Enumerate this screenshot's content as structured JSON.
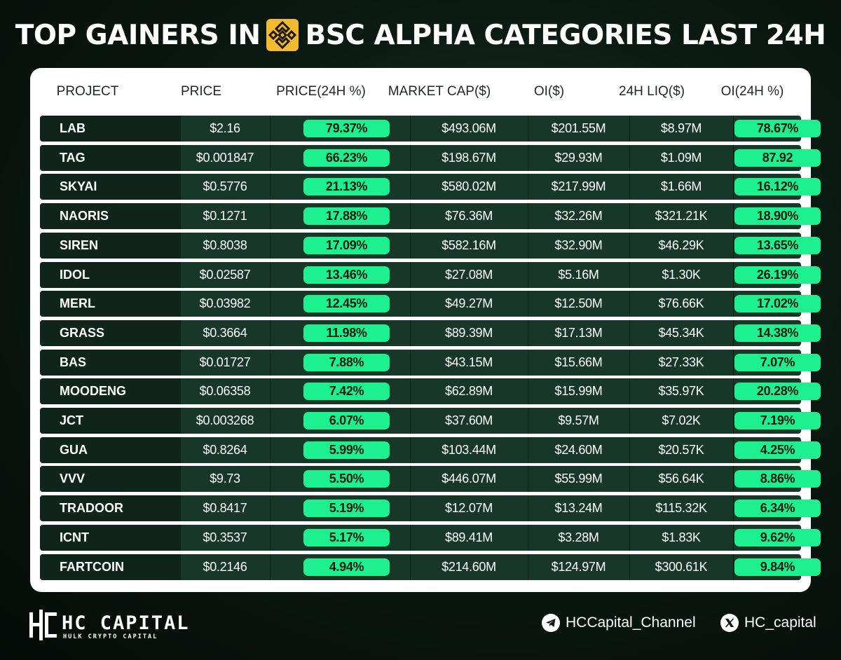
{
  "title_left": "TOP GAINERS IN",
  "title_right": "BSC ALPHA CATEGORIES LAST 24H",
  "logo_icon": "bnb-logo-icon",
  "colors": {
    "accent": "#1cf08f",
    "row_bg": "#173728",
    "project_bg": "#0f2519",
    "logo": "#f3ba2f"
  },
  "table": {
    "headers": [
      "PROJECT",
      "PRICE",
      "PRICE(24H %)",
      "MARKET CAP($)",
      "OI($)",
      "24H LIQ($)",
      "OI(24H %)"
    ],
    "rows": [
      [
        "LAB",
        "$2.16",
        "79.37%",
        "$493.06M",
        "$201.55M",
        "$8.97M",
        "78.67%"
      ],
      [
        "TAG",
        "$0.001847",
        "66.23%",
        "$198.67M",
        "$29.93M",
        "$1.09M",
        "87.92"
      ],
      [
        "SKYAI",
        "$0.5776",
        "21.13%",
        "$580.02M",
        "$217.99M",
        "$1.66M",
        "16.12%"
      ],
      [
        "NAORIS",
        "$0.1271",
        "17.88%",
        "$76.36M",
        "$32.26M",
        "$321.21K",
        "18.90%"
      ],
      [
        "SIREN",
        "$0.8038",
        "17.09%",
        "$582.16M",
        "$32.90M",
        "$46.29K",
        "13.65%"
      ],
      [
        "IDOL",
        "$0.02587",
        "13.46%",
        "$27.08M",
        "$5.16M",
        "$1.30K",
        "26.19%"
      ],
      [
        "MERL",
        "$0.03982",
        "12.45%",
        "$49.27M",
        "$12.50M",
        "$76.66K",
        "17.02%"
      ],
      [
        "GRASS",
        "$0.3664",
        "11.98%",
        "$89.39M",
        "$17.13M",
        "$45.34K",
        "14.38%"
      ],
      [
        "BAS",
        "$0.01727",
        "7.88%",
        "$43.15M",
        "$15.66M",
        "$27.33K",
        "7.07%"
      ],
      [
        "MOODENG",
        "$0.06358",
        "7.42%",
        "$62.89M",
        "$15.99M",
        "$35.97K",
        "20.28%"
      ],
      [
        "JCT",
        "$0.003268",
        "6.07%",
        "$37.60M",
        "$9.57M",
        "$7.02K",
        "7.19%"
      ],
      [
        "GUA",
        "$0.8264",
        "5.99%",
        "$103.44M",
        "$24.60M",
        "$20.57K",
        "4.25%"
      ],
      [
        "VVV",
        "$9.73",
        "5.50%",
        "$446.07M",
        "$55.99M",
        "$56.64K",
        "8.86%"
      ],
      [
        "TRADOOR",
        "$0.8417",
        "5.19%",
        "$12.07M",
        "$13.24M",
        "$115.32K",
        "6.34%"
      ],
      [
        "ICNT",
        "$0.3537",
        "5.17%",
        "$89.41M",
        "$3.28M",
        "$1.83K",
        "9.62%"
      ],
      [
        "FARTCOIN",
        "$0.2146",
        "4.94%",
        "$214.60M",
        "$124.97M",
        "$300.61K",
        "9.84%"
      ]
    ]
  },
  "footer": {
    "brand_name": "HC CAPITAL",
    "brand_sub": "HULK CRYPTO CAPITAL",
    "telegram_label": "HCCapital_Channel",
    "telegram_icon": "telegram-icon",
    "x_label": "HC_capital",
    "x_icon": "x-logo-icon"
  }
}
